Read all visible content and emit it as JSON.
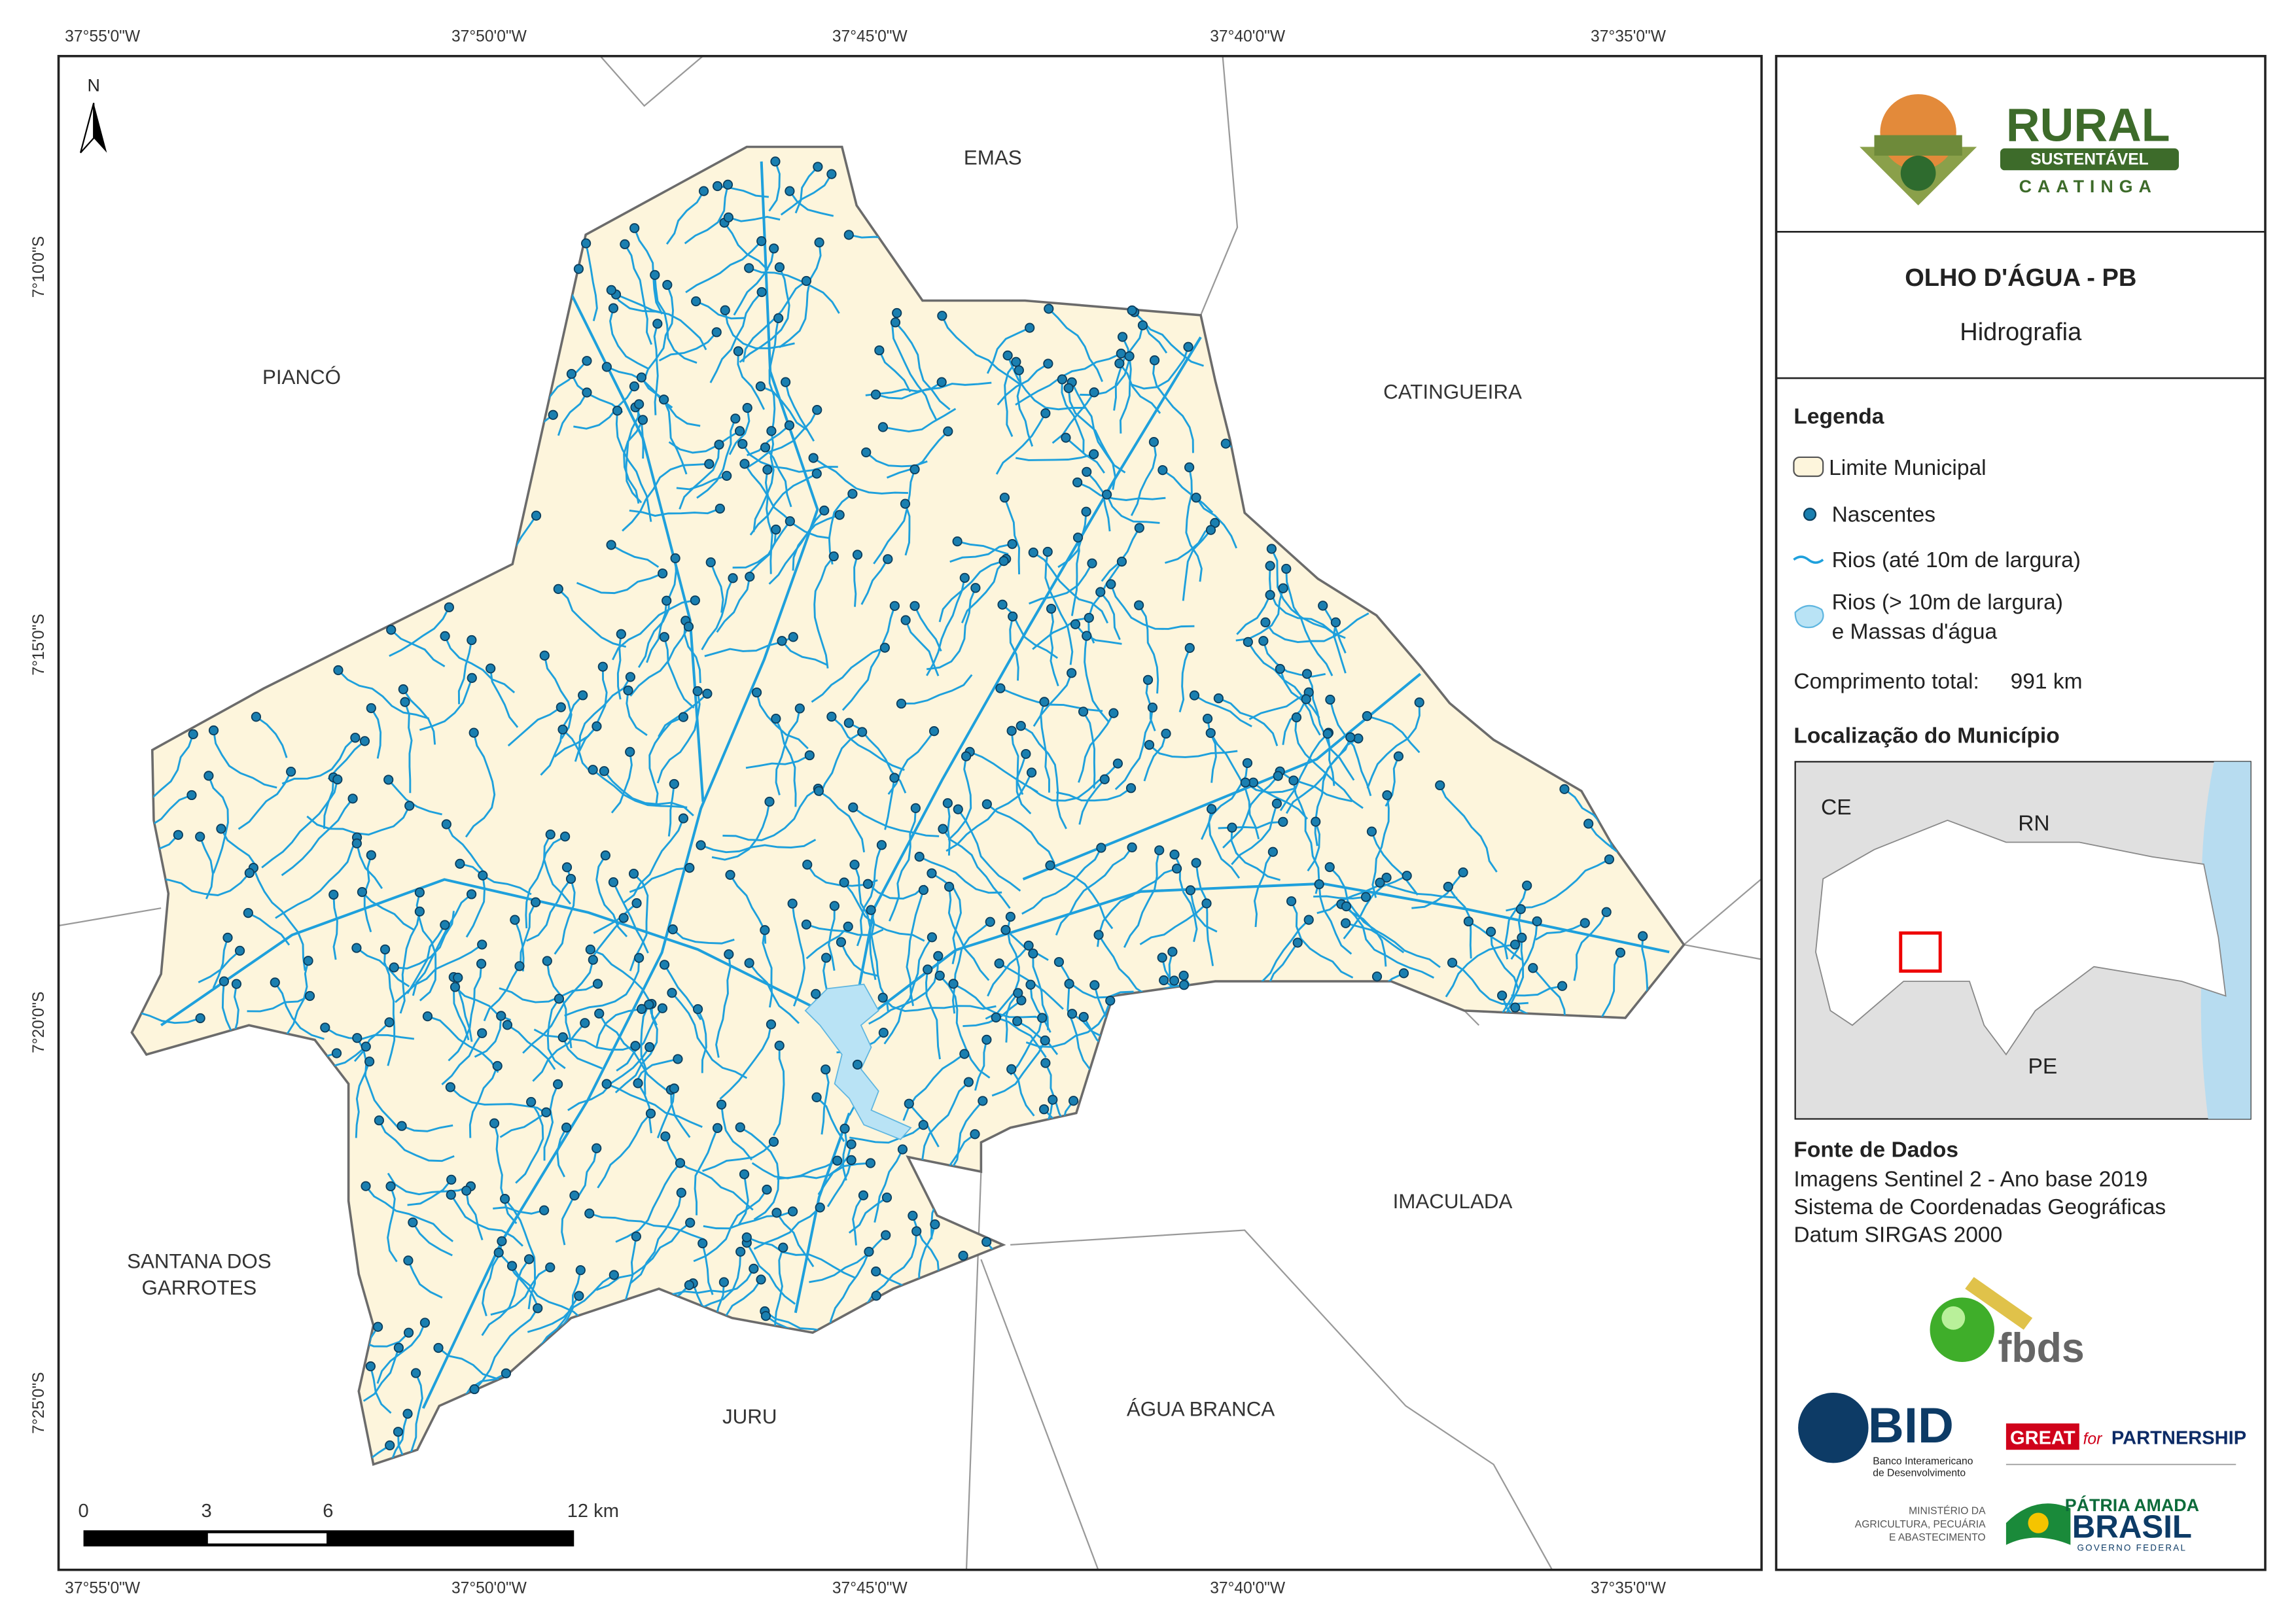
{
  "map": {
    "top_coords": [
      "37°55'0\"W",
      "37°50'0\"W",
      "37°45'0\"W",
      "37°40'0\"W",
      "37°35'0\"W"
    ],
    "bottom_coords": [
      "37°55'0\"W",
      "37°50'0\"W",
      "37°45'0\"W",
      "37°40'0\"W",
      "37°35'0\"W"
    ],
    "left_coords": [
      "7°10'0\"S",
      "7°15'0\"S",
      "7°20'0\"S",
      "7°25'0\"S"
    ],
    "north": "N",
    "neighbors": [
      "EMAS",
      "PIANCÓ",
      "CATINGUEIRA",
      "SANTANA DOS",
      "GARROTES",
      "IMACULADA",
      "JURU",
      "ÁGUA BRANCA"
    ],
    "scale_labels": [
      "0",
      "3",
      "6",
      "12 km"
    ]
  },
  "panel": {
    "logo": [
      "RURAL",
      "SUSTENTÁVEL",
      "CAATINGA"
    ],
    "title": "OLHO D'ÁGUA - PB",
    "subtitle": "Hidrografia",
    "legend_title": "Legenda",
    "legend_items": [
      "Limite Municipal",
      "Nascentes",
      "Rios (até 10m de largura)",
      "Rios (> 10m de largura)",
      "e Massas d'água"
    ],
    "total_label": "Comprimento total:",
    "total_value": "991 km",
    "location_title": "Localização do Município",
    "inset_labels": [
      "CE",
      "RN",
      "PE"
    ],
    "sources_title": "Fonte de Dados",
    "sources": [
      "Imagens Sentinel 2 - Ano base 2019",
      "Sistema de Coordenadas Geográficas",
      "Datum SIRGAS 2000"
    ],
    "partners": [
      "fbds",
      "BID",
      "Banco Interamericano",
      "de Desenvolvimento",
      "GREAT",
      "for",
      "PARTNERSHIP",
      "MINISTÉRIO DA",
      "AGRICULTURA, PECUÁRIA",
      "E ABASTECIMENTO",
      "PÁTRIA AMADA",
      "BRASIL",
      "GOVERNO FEDERAL"
    ]
  }
}
